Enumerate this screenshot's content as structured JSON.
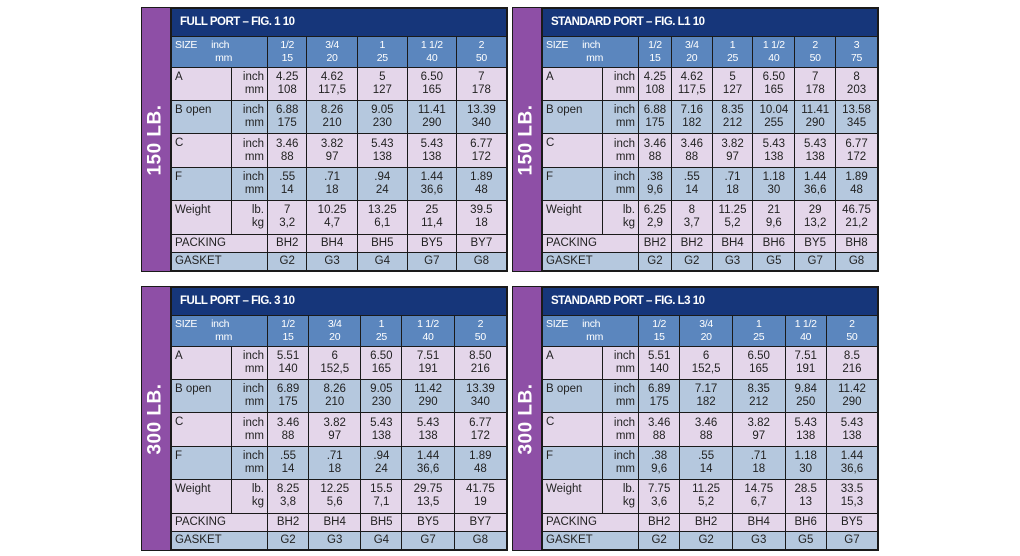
{
  "blocks": [
    {
      "id": "150-full",
      "band": "150 LB.",
      "title": "FULL PORT – FIG. 1 10",
      "header": {
        "size": "SIZE",
        "inch": "inch",
        "mm": "mm"
      },
      "sizes": [
        [
          "1/2",
          "15"
        ],
        [
          "3/4",
          "20"
        ],
        [
          "1",
          "25"
        ],
        [
          "1 1/2",
          "40"
        ],
        [
          "2",
          "50"
        ]
      ],
      "rows": [
        {
          "label": "A",
          "u1": "inch",
          "u2": "mm",
          "vals": [
            [
              "4.25",
              "108"
            ],
            [
              "4.62",
              "117,5"
            ],
            [
              "5",
              "127"
            ],
            [
              "6.50",
              "165"
            ],
            [
              "7",
              "178"
            ]
          ]
        },
        {
          "label": "B open",
          "u1": "inch",
          "u2": "mm",
          "vals": [
            [
              "6.88",
              "175"
            ],
            [
              "8.26",
              "210"
            ],
            [
              "9.05",
              "230"
            ],
            [
              "11.41",
              "290"
            ],
            [
              "13.39",
              "340"
            ]
          ]
        },
        {
          "label": "C",
          "u1": "inch",
          "u2": "mm",
          "vals": [
            [
              "3.46",
              "88"
            ],
            [
              "3.82",
              "97"
            ],
            [
              "5.43",
              "138"
            ],
            [
              "5.43",
              "138"
            ],
            [
              "6.77",
              "172"
            ]
          ]
        },
        {
          "label": "F",
          "u1": "inch",
          "u2": "mm",
          "vals": [
            [
              ".55",
              "14"
            ],
            [
              ".71",
              "18"
            ],
            [
              ".94",
              "24"
            ],
            [
              "1.44",
              "36,6"
            ],
            [
              "1.89",
              "48"
            ]
          ]
        },
        {
          "label": "Weight",
          "u1": "lb.",
          "u2": "kg",
          "vals": [
            [
              "7",
              "3,2"
            ],
            [
              "10.25",
              "4,7"
            ],
            [
              "13.25",
              "6,1"
            ],
            [
              "25",
              "11,4"
            ],
            [
              "39.5",
              "18"
            ]
          ]
        }
      ],
      "packing": {
        "label": "PACKING",
        "vals": [
          "BH2",
          "BH4",
          "BH5",
          "BY5",
          "BY7"
        ]
      },
      "gasket": {
        "label": "GASKET",
        "vals": [
          "G2",
          "G3",
          "G4",
          "G7",
          "G8"
        ]
      }
    },
    {
      "id": "150-std",
      "band": "150 LB.",
      "title": "STANDARD PORT – FIG. L1 10",
      "header": {
        "size": "SIZE",
        "inch": "inch",
        "mm": "mm"
      },
      "sizes": [
        [
          "1/2",
          "15"
        ],
        [
          "3/4",
          "20"
        ],
        [
          "1",
          "25"
        ],
        [
          "1 1/2",
          "40"
        ],
        [
          "2",
          "50"
        ],
        [
          "3",
          "75"
        ]
      ],
      "rows": [
        {
          "label": "A",
          "u1": "inch",
          "u2": "mm",
          "vals": [
            [
              "4.25",
              "108"
            ],
            [
              "4.62",
              "117,5"
            ],
            [
              "5",
              "127"
            ],
            [
              "6.50",
              "165"
            ],
            [
              "7",
              "178"
            ],
            [
              "8",
              "203"
            ]
          ]
        },
        {
          "label": "B open",
          "u1": "inch",
          "u2": "mm",
          "vals": [
            [
              "6.88",
              "175"
            ],
            [
              "7.16",
              "182"
            ],
            [
              "8.35",
              "212"
            ],
            [
              "10.04",
              "255"
            ],
            [
              "11.41",
              "290"
            ],
            [
              "13.58",
              "345"
            ]
          ]
        },
        {
          "label": "C",
          "u1": "inch",
          "u2": "mm",
          "vals": [
            [
              "3.46",
              "88"
            ],
            [
              "3.46",
              "88"
            ],
            [
              "3.82",
              "97"
            ],
            [
              "5.43",
              "138"
            ],
            [
              "5.43",
              "138"
            ],
            [
              "6.77",
              "172"
            ]
          ]
        },
        {
          "label": "F",
          "u1": "inch",
          "u2": "mm",
          "vals": [
            [
              ".38",
              "9,6"
            ],
            [
              ".55",
              "14"
            ],
            [
              ".71",
              "18"
            ],
            [
              "1.18",
              "30"
            ],
            [
              "1.44",
              "36,6"
            ],
            [
              "1.89",
              "48"
            ]
          ]
        },
        {
          "label": "Weight",
          "u1": "lb.",
          "u2": "kg",
          "vals": [
            [
              "6.25",
              "2,9"
            ],
            [
              "8",
              "3,7"
            ],
            [
              "11.25",
              "5,2"
            ],
            [
              "21",
              "9,6"
            ],
            [
              "29",
              "13,2"
            ],
            [
              "46.75",
              "21,2"
            ]
          ]
        }
      ],
      "packing": {
        "label": "PACKING",
        "vals": [
          "BH2",
          "BH2",
          "BH4",
          "BH6",
          "BY5",
          "BH8"
        ]
      },
      "gasket": {
        "label": "GASKET",
        "vals": [
          "G2",
          "G2",
          "G3",
          "G5",
          "G7",
          "G8"
        ]
      }
    },
    {
      "id": "300-full",
      "band": "300 LB.",
      "title": "FULL PORT – FIG. 3 10",
      "header": {
        "size": "SIZE",
        "inch": "inch",
        "mm": "mm"
      },
      "sizes": [
        [
          "1/2",
          "15"
        ],
        [
          "3/4",
          "20"
        ],
        [
          "1",
          "25"
        ],
        [
          "1 1/2",
          "40"
        ],
        [
          "2",
          "50"
        ]
      ],
      "rows": [
        {
          "label": "A",
          "u1": "inch",
          "u2": "mm",
          "vals": [
            [
              "5.51",
              "140"
            ],
            [
              "6",
              "152,5"
            ],
            [
              "6.50",
              "165"
            ],
            [
              "7.51",
              "191"
            ],
            [
              "8.50",
              "216"
            ]
          ]
        },
        {
          "label": "B open",
          "u1": "inch",
          "u2": "mm",
          "vals": [
            [
              "6.89",
              "175"
            ],
            [
              "8.26",
              "210"
            ],
            [
              "9.05",
              "230"
            ],
            [
              "11.42",
              "290"
            ],
            [
              "13.39",
              "340"
            ]
          ]
        },
        {
          "label": "C",
          "u1": "inch",
          "u2": "mm",
          "vals": [
            [
              "3.46",
              "88"
            ],
            [
              "3.82",
              "97"
            ],
            [
              "5.43",
              "138"
            ],
            [
              "5.43",
              "138"
            ],
            [
              "6.77",
              "172"
            ]
          ]
        },
        {
          "label": "F",
          "u1": "inch",
          "u2": "mm",
          "vals": [
            [
              ".55",
              "14"
            ],
            [
              ".71",
              "18"
            ],
            [
              ".94",
              "24"
            ],
            [
              "1.44",
              "36,6"
            ],
            [
              "1.89",
              "48"
            ]
          ]
        },
        {
          "label": "Weight",
          "u1": "lb.",
          "u2": "kg",
          "vals": [
            [
              "8.25",
              "3,8"
            ],
            [
              "12.25",
              "5,6"
            ],
            [
              "15.5",
              "7,1"
            ],
            [
              "29.75",
              "13,5"
            ],
            [
              "41.75",
              "19"
            ]
          ]
        }
      ],
      "packing": {
        "label": "PACKING",
        "vals": [
          "BH2",
          "BH4",
          "BH5",
          "BY5",
          "BY7"
        ]
      },
      "gasket": {
        "label": "GASKET",
        "vals": [
          "G2",
          "G3",
          "G4",
          "G7",
          "G8"
        ]
      }
    },
    {
      "id": "300-std",
      "band": "300 LB.",
      "title": "STANDARD PORT – FIG. L3 10",
      "header": {
        "size": "SIZE",
        "inch": "inch",
        "mm": "mm"
      },
      "sizes": [
        [
          "1/2",
          "15"
        ],
        [
          "3/4",
          "20"
        ],
        [
          "1",
          "25"
        ],
        [
          "1 1/2",
          "40"
        ],
        [
          "2",
          "50"
        ]
      ],
      "rows": [
        {
          "label": "A",
          "u1": "inch",
          "u2": "mm",
          "vals": [
            [
              "5.51",
              "140"
            ],
            [
              "6",
              "152,5"
            ],
            [
              "6.50",
              "165"
            ],
            [
              "7.51",
              "191"
            ],
            [
              "8.5",
              "216"
            ]
          ]
        },
        {
          "label": "B open",
          "u1": "inch",
          "u2": "mm",
          "vals": [
            [
              "6.89",
              "175"
            ],
            [
              "7.17",
              "182"
            ],
            [
              "8.35",
              "212"
            ],
            [
              "9.84",
              "250"
            ],
            [
              "11.42",
              "290"
            ]
          ]
        },
        {
          "label": "C",
          "u1": "inch",
          "u2": "mm",
          "vals": [
            [
              "3.46",
              "88"
            ],
            [
              "3.46",
              "88"
            ],
            [
              "3.82",
              "97"
            ],
            [
              "5.43",
              "138"
            ],
            [
              "5.43",
              "138"
            ]
          ]
        },
        {
          "label": "F",
          "u1": "inch",
          "u2": "mm",
          "vals": [
            [
              ".38",
              "9,6"
            ],
            [
              ".55",
              "14"
            ],
            [
              ".71",
              "18"
            ],
            [
              "1.18",
              "30"
            ],
            [
              "1.44",
              "36,6"
            ]
          ]
        },
        {
          "label": "Weight",
          "u1": "lb.",
          "u2": "kg",
          "vals": [
            [
              "7.75",
              "3,6"
            ],
            [
              "11.25",
              "5,2"
            ],
            [
              "14.75",
              "6,7"
            ],
            [
              "28.5",
              "13"
            ],
            [
              "33.5",
              "15,3"
            ]
          ]
        }
      ],
      "packing": {
        "label": "PACKING",
        "vals": [
          "BH2",
          "BH2",
          "BH4",
          "BH6",
          "BY5"
        ]
      },
      "gasket": {
        "label": "GASKET",
        "vals": [
          "G2",
          "G2",
          "G3",
          "G5",
          "G7"
        ]
      }
    }
  ],
  "colors": {
    "title": "#16367a",
    "header": "#5b86be",
    "lavender": "#e4d6ea",
    "blue": "#b5c8de",
    "band": "#8e4fa6"
  }
}
